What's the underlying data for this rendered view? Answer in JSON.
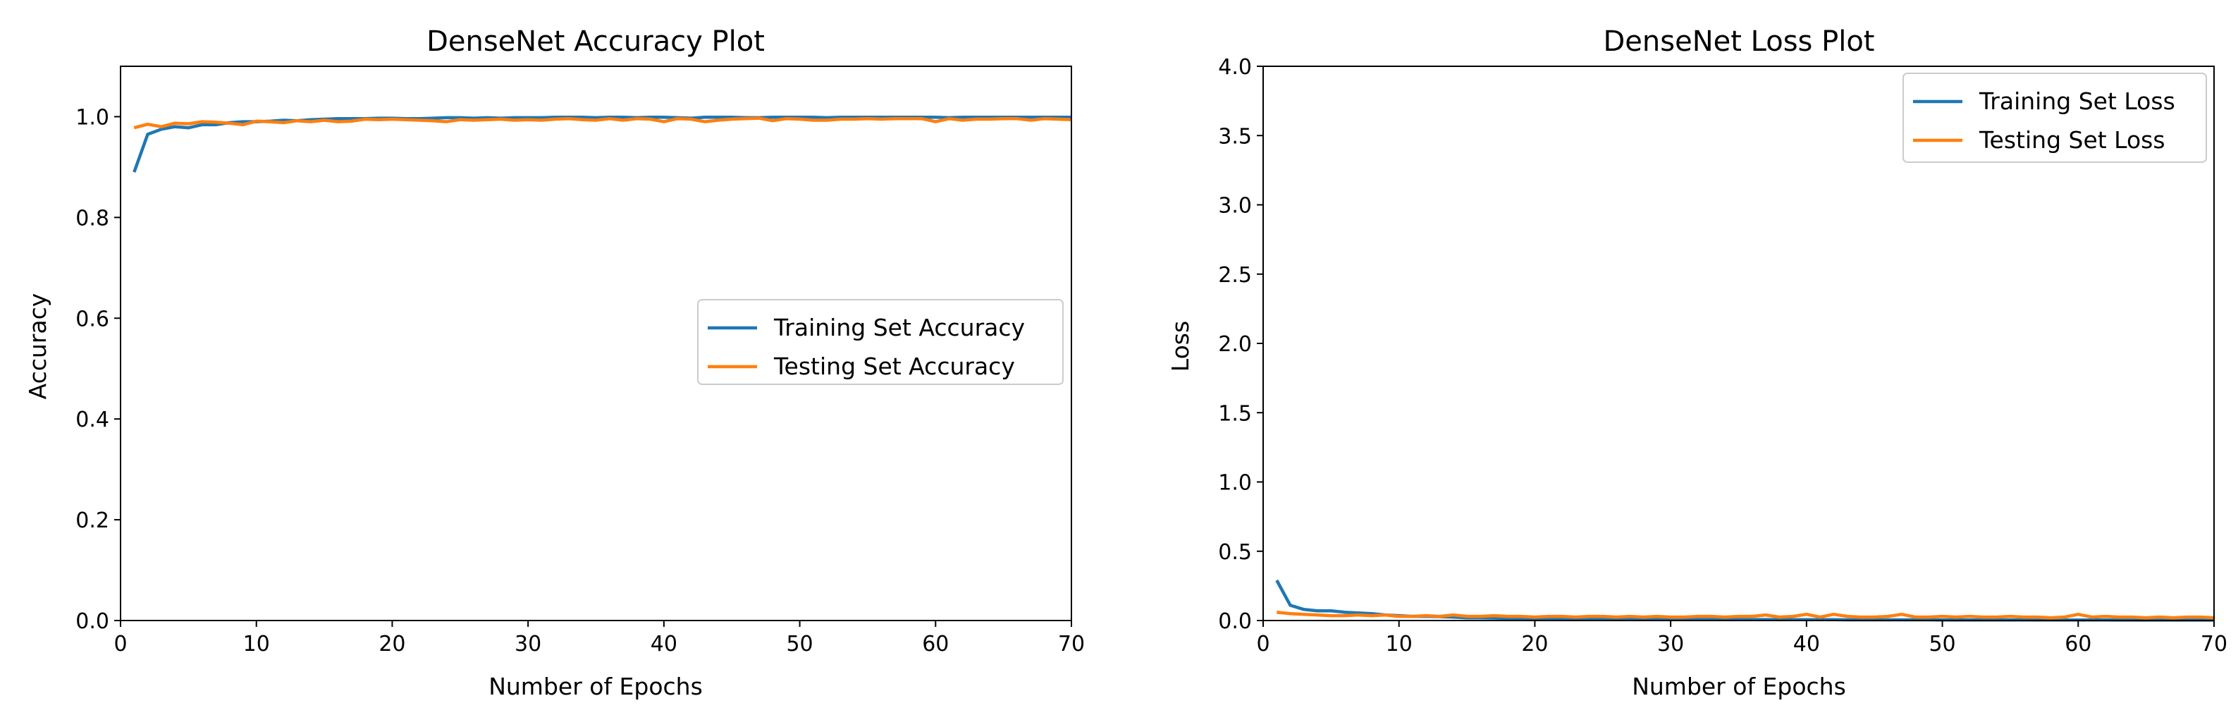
{
  "colors": {
    "training": "#1f77b4",
    "testing": "#ff7f0e"
  },
  "chart_data": [
    {
      "type": "line",
      "title": "DenseNet Accuracy Plot",
      "xlabel": "Number of Epochs",
      "ylabel": "Accuracy",
      "xlim": [
        0,
        70
      ],
      "ylim": [
        0.0,
        1.1
      ],
      "xticks": [
        "0",
        "10",
        "20",
        "30",
        "40",
        "50",
        "60",
        "70"
      ],
      "yticks": [
        "0.0",
        "0.2",
        "0.4",
        "0.6",
        "0.8",
        "1.0"
      ],
      "legend_position": "center-right",
      "x": [
        1,
        2,
        3,
        4,
        5,
        6,
        7,
        8,
        9,
        10,
        11,
        12,
        13,
        14,
        15,
        16,
        17,
        18,
        19,
        20,
        21,
        22,
        23,
        24,
        25,
        26,
        27,
        28,
        29,
        30,
        31,
        32,
        33,
        34,
        35,
        36,
        37,
        38,
        39,
        40,
        41,
        42,
        43,
        44,
        45,
        46,
        47,
        48,
        49,
        50,
        51,
        52,
        53,
        54,
        55,
        56,
        57,
        58,
        59,
        60,
        61,
        62,
        63,
        64,
        65,
        66,
        67,
        68,
        69,
        70
      ],
      "series": [
        {
          "name": "Training Set Accuracy",
          "values": [
            0.89,
            0.965,
            0.975,
            0.98,
            0.978,
            0.984,
            0.984,
            0.988,
            0.99,
            0.99,
            0.991,
            0.993,
            0.992,
            0.994,
            0.995,
            0.996,
            0.996,
            0.996,
            0.997,
            0.997,
            0.996,
            0.996,
            0.997,
            0.998,
            0.998,
            0.997,
            0.998,
            0.997,
            0.998,
            0.998,
            0.998,
            0.999,
            0.999,
            0.999,
            0.998,
            0.999,
            0.999,
            0.998,
            0.999,
            0.999,
            0.998,
            0.997,
            0.999,
            0.999,
            0.999,
            0.998,
            0.998,
            0.999,
            0.999,
            0.999,
            0.999,
            0.998,
            0.999,
            0.999,
            0.999,
            0.999,
            0.999,
            0.999,
            0.999,
            0.999,
            0.998,
            0.999,
            0.999,
            0.999,
            0.999,
            0.999,
            0.999,
            0.999,
            0.999,
            0.999
          ]
        },
        {
          "name": "Testing Set Accuracy",
          "values": [
            0.978,
            0.985,
            0.98,
            0.987,
            0.986,
            0.99,
            0.989,
            0.987,
            0.984,
            0.991,
            0.99,
            0.988,
            0.992,
            0.99,
            0.993,
            0.99,
            0.991,
            0.995,
            0.994,
            0.995,
            0.994,
            0.993,
            0.992,
            0.99,
            0.994,
            0.993,
            0.994,
            0.995,
            0.993,
            0.994,
            0.993,
            0.995,
            0.996,
            0.994,
            0.993,
            0.996,
            0.993,
            0.996,
            0.995,
            0.99,
            0.996,
            0.995,
            0.99,
            0.993,
            0.995,
            0.996,
            0.997,
            0.992,
            0.996,
            0.995,
            0.993,
            0.993,
            0.995,
            0.995,
            0.996,
            0.995,
            0.996,
            0.996,
            0.996,
            0.99,
            0.996,
            0.993,
            0.995,
            0.995,
            0.996,
            0.996,
            0.993,
            0.996,
            0.995,
            0.994
          ]
        }
      ]
    },
    {
      "type": "line",
      "title": "DenseNet Loss Plot",
      "xlabel": "Number of Epochs",
      "ylabel": "Loss",
      "xlim": [
        0,
        70
      ],
      "ylim": [
        0.0,
        4.0
      ],
      "xticks": [
        "0",
        "10",
        "20",
        "30",
        "40",
        "50",
        "60",
        "70"
      ],
      "yticks": [
        "0.0",
        "0.5",
        "1.0",
        "1.5",
        "2.0",
        "2.5",
        "3.0",
        "3.5",
        "4.0"
      ],
      "legend_position": "top-right",
      "x": [
        1,
        2,
        3,
        4,
        5,
        6,
        7,
        8,
        9,
        10,
        11,
        12,
        13,
        14,
        15,
        16,
        17,
        18,
        19,
        20,
        21,
        22,
        23,
        24,
        25,
        26,
        27,
        28,
        29,
        30,
        31,
        32,
        33,
        34,
        35,
        36,
        37,
        38,
        39,
        40,
        41,
        42,
        43,
        44,
        45,
        46,
        47,
        48,
        49,
        50,
        51,
        52,
        53,
        54,
        55,
        56,
        57,
        58,
        59,
        60,
        61,
        62,
        63,
        64,
        65,
        66,
        67,
        68,
        69,
        70
      ],
      "series": [
        {
          "name": "Training Set Loss",
          "values": [
            0.29,
            0.11,
            0.08,
            0.07,
            0.07,
            0.06,
            0.055,
            0.05,
            0.04,
            0.035,
            0.03,
            0.03,
            0.028,
            0.025,
            0.02,
            0.02,
            0.018,
            0.016,
            0.015,
            0.014,
            0.013,
            0.013,
            0.012,
            0.011,
            0.01,
            0.01,
            0.01,
            0.009,
            0.009,
            0.009,
            0.008,
            0.008,
            0.008,
            0.007,
            0.007,
            0.007,
            0.007,
            0.006,
            0.006,
            0.006,
            0.006,
            0.006,
            0.005,
            0.005,
            0.005,
            0.005,
            0.005,
            0.005,
            0.005,
            0.004,
            0.004,
            0.004,
            0.004,
            0.004,
            0.004,
            0.004,
            0.004,
            0.004,
            0.004,
            0.004,
            0.004,
            0.004,
            0.003,
            0.003,
            0.003,
            0.003,
            0.003,
            0.003,
            0.003,
            0.003
          ]
        },
        {
          "name": "Testing Set Loss",
          "values": [
            0.06,
            0.05,
            0.045,
            0.04,
            0.035,
            0.035,
            0.04,
            0.035,
            0.04,
            0.03,
            0.03,
            0.035,
            0.03,
            0.04,
            0.03,
            0.03,
            0.035,
            0.03,
            0.03,
            0.025,
            0.03,
            0.03,
            0.025,
            0.03,
            0.03,
            0.025,
            0.03,
            0.025,
            0.03,
            0.025,
            0.025,
            0.03,
            0.03,
            0.025,
            0.03,
            0.03,
            0.04,
            0.025,
            0.03,
            0.045,
            0.025,
            0.045,
            0.03,
            0.025,
            0.025,
            0.03,
            0.045,
            0.025,
            0.025,
            0.03,
            0.025,
            0.03,
            0.025,
            0.025,
            0.03,
            0.025,
            0.025,
            0.02,
            0.025,
            0.045,
            0.025,
            0.03,
            0.025,
            0.025,
            0.02,
            0.025,
            0.02,
            0.025,
            0.025,
            0.02
          ]
        }
      ]
    }
  ]
}
